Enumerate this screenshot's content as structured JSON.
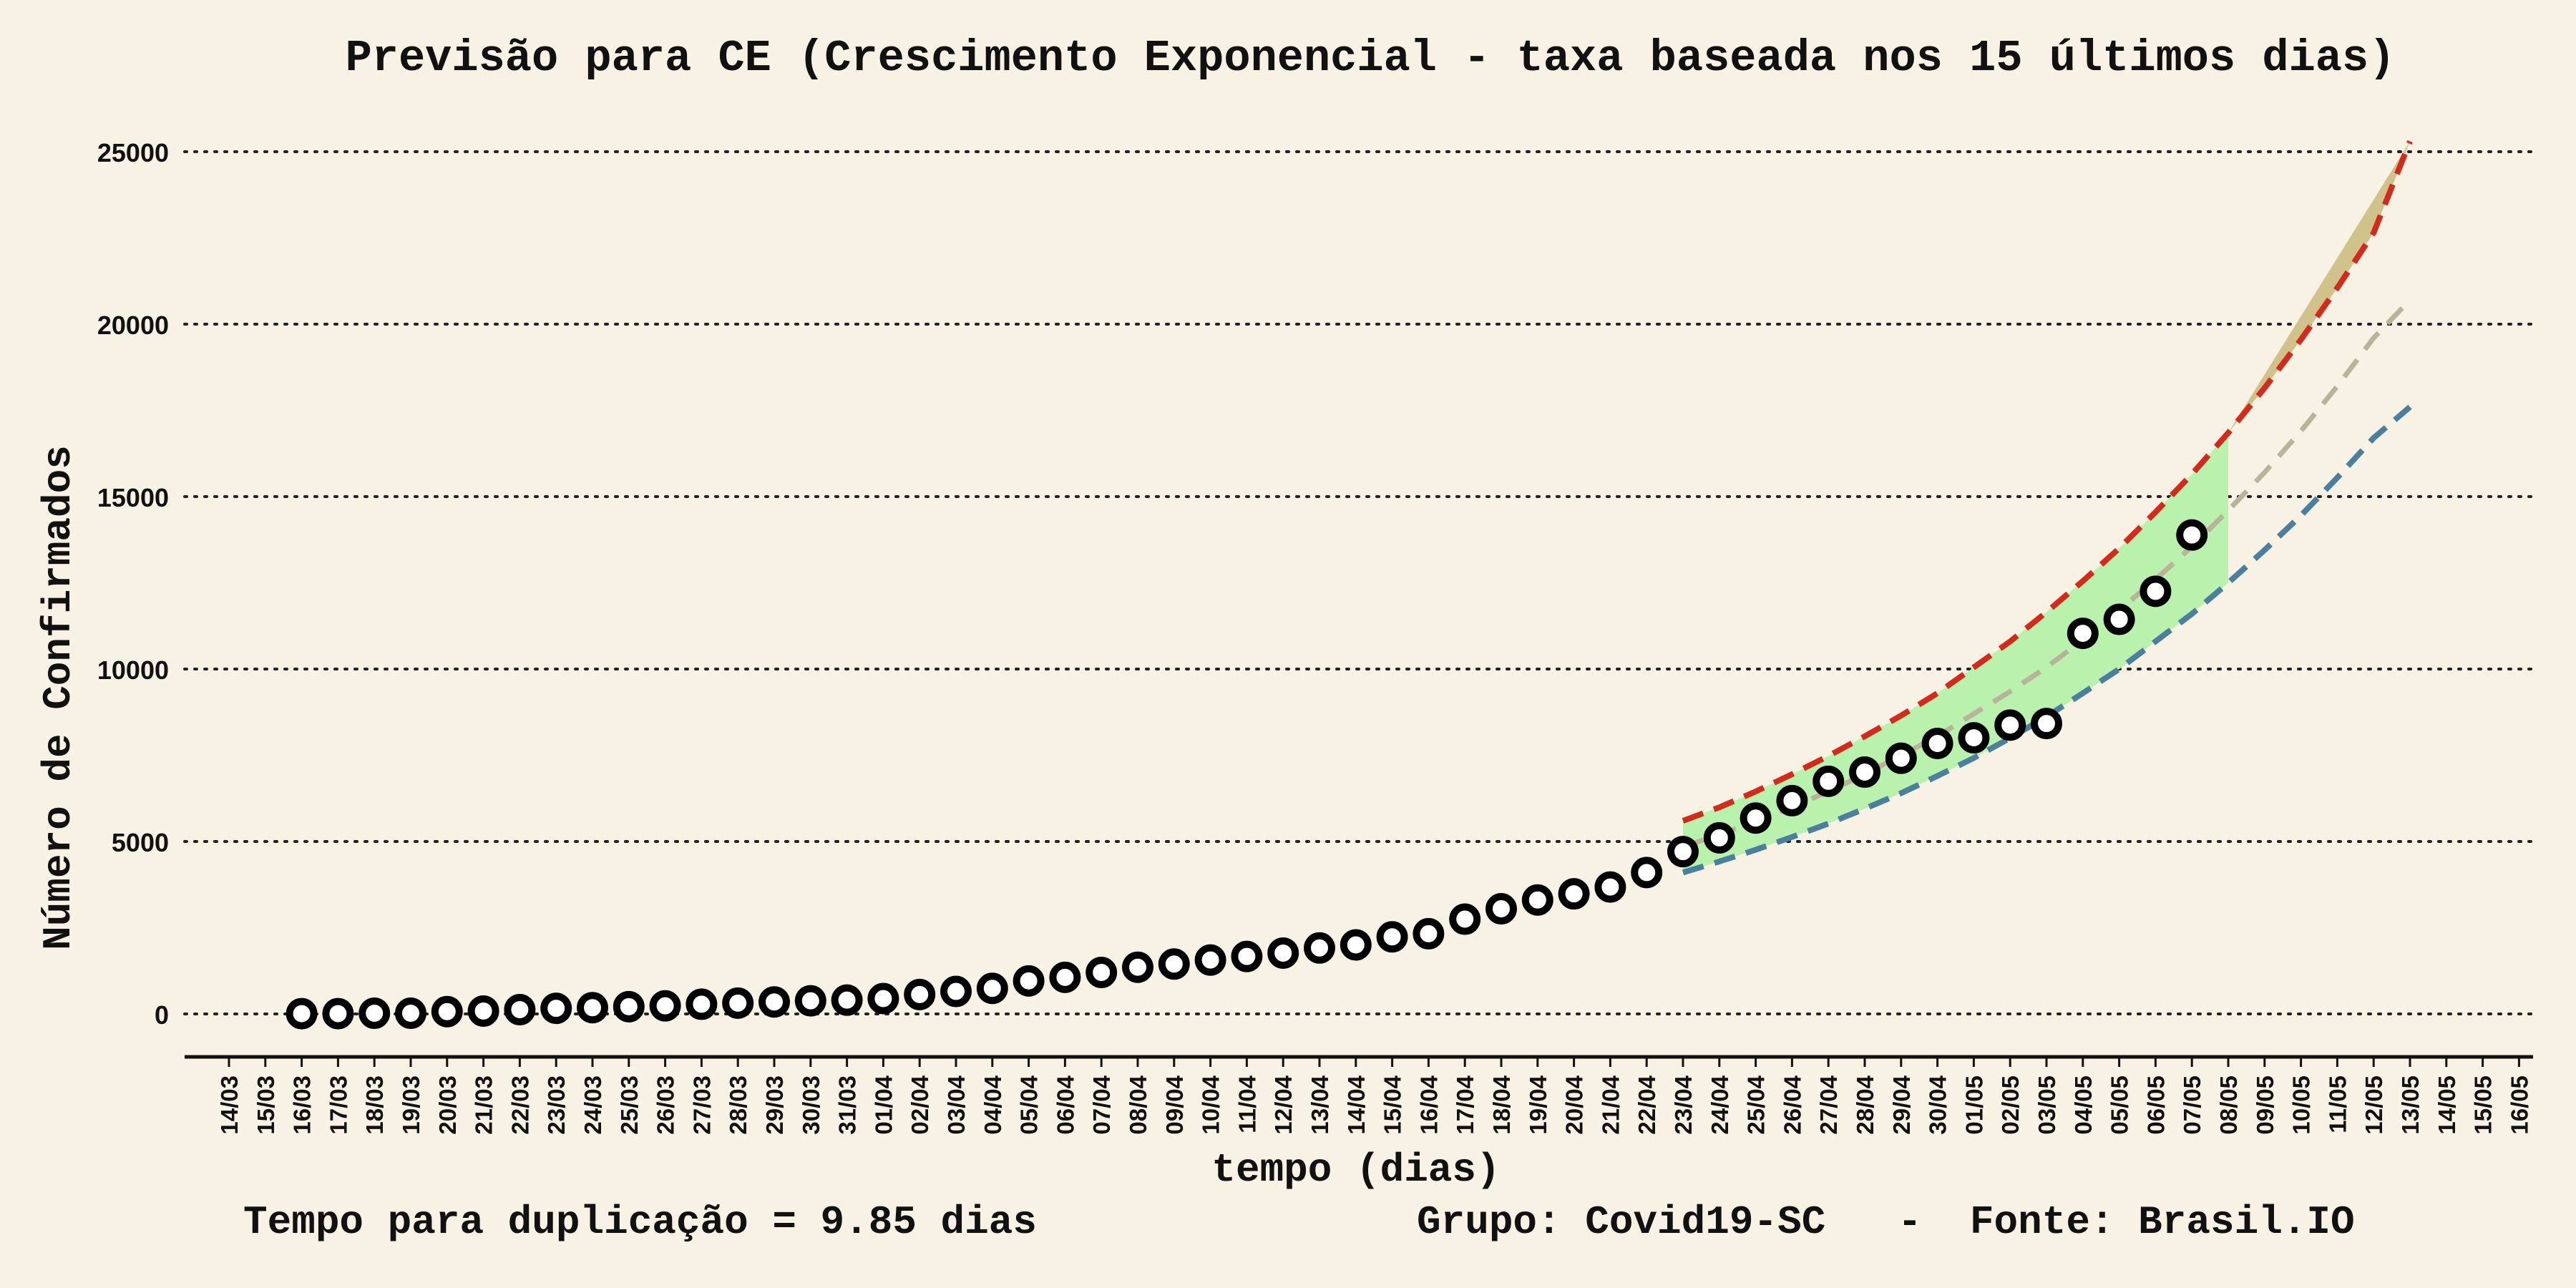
{
  "chart_data": {
    "type": "scatter",
    "title": "Previsão para CE (Crescimento Exponencial - taxa baseada nos 15 últimos dias)",
    "xlabel": "tempo (dias)",
    "ylabel": "Número de Confirmados",
    "ylim": [
      0,
      25000
    ],
    "yticks": [
      0,
      5000,
      10000,
      15000,
      20000,
      25000
    ],
    "grid": "horizontal dotted",
    "x_ticks": [
      "14/03",
      "15/03",
      "16/03",
      "17/03",
      "18/03",
      "19/03",
      "20/03",
      "21/03",
      "22/03",
      "23/03",
      "24/03",
      "25/03",
      "26/03",
      "27/03",
      "28/03",
      "29/03",
      "30/03",
      "31/03",
      "01/04",
      "02/04",
      "03/04",
      "04/04",
      "05/04",
      "06/04",
      "07/04",
      "08/04",
      "09/04",
      "10/04",
      "11/04",
      "12/04",
      "13/04",
      "14/04",
      "15/04",
      "16/04",
      "17/04",
      "18/04",
      "19/04",
      "20/04",
      "21/04",
      "22/04",
      "23/04",
      "24/04",
      "25/04",
      "26/04",
      "27/04",
      "28/04",
      "29/04",
      "30/04",
      "01/05",
      "02/05",
      "03/05",
      "04/05",
      "05/05",
      "06/05",
      "07/05",
      "08/05",
      "09/05",
      "10/05",
      "11/05",
      "12/05",
      "13/05",
      "14/05",
      "15/05",
      "16/05"
    ],
    "observed": {
      "dates": [
        "16/03",
        "17/03",
        "18/03",
        "19/03",
        "20/03",
        "21/03",
        "22/03",
        "23/03",
        "24/03",
        "25/03",
        "26/03",
        "27/03",
        "28/03",
        "29/03",
        "30/03",
        "31/03",
        "01/04",
        "02/04",
        "03/04",
        "04/04",
        "05/04",
        "06/04",
        "07/04",
        "08/04",
        "09/04",
        "10/04",
        "11/04",
        "12/04",
        "13/04",
        "14/04",
        "15/04",
        "16/04",
        "17/04",
        "18/04",
        "19/04",
        "20/04",
        "21/04",
        "22/04",
        "23/04",
        "24/04",
        "25/04",
        "26/04",
        "27/04",
        "28/04",
        "29/04",
        "30/04",
        "01/05",
        "02/05",
        "03/05",
        "04/05",
        "05/05",
        "06/05",
        "07/05"
      ],
      "values": [
        9,
        9,
        20,
        20,
        68,
        84,
        125,
        163,
        182,
        211,
        235,
        282,
        314,
        348,
        382,
        401,
        445,
        563,
        653,
        741,
        958,
        1061,
        1203,
        1355,
        1447,
        1563,
        1667,
        1764,
        1913,
        2003,
        2235,
        2325,
        2748,
        3049,
        3304,
        3482,
        3680,
        4100,
        4706,
        5107,
        5680,
        6184,
        6746,
        7012,
        7414,
        7843,
        8007,
        8375,
        8421,
        11036,
        11441,
        12254,
        13887
      ]
    },
    "projection": {
      "fit_dates": [
        "23/04",
        "24/04",
        "25/04",
        "26/04",
        "27/04",
        "28/04",
        "29/04",
        "30/04",
        "01/05",
        "02/05",
        "03/05",
        "04/05",
        "05/05",
        "06/05",
        "07/05",
        "08/05"
      ],
      "forecast_dates": [
        "08/05",
        "09/05",
        "10/05",
        "11/05",
        "12/05",
        "13/05",
        "14/05"
      ],
      "upper": [
        5600,
        5990,
        6450,
        6950,
        7480,
        8050,
        8650,
        9300,
        10050,
        10800,
        11650,
        12550,
        13500,
        14550,
        15650,
        16850,
        18150,
        19550,
        21050,
        22650,
        25300
      ],
      "central": [
        4850,
        5200,
        5590,
        6000,
        6450,
        6950,
        7500,
        8050,
        8700,
        9350,
        10050,
        10850,
        11700,
        12600,
        13550,
        14600,
        15700,
        16900,
        18200,
        19600,
        20700
      ],
      "lower": [
        4100,
        4420,
        4760,
        5130,
        5520,
        5950,
        6400,
        6900,
        7420,
        8000,
        8620,
        9300,
        10000,
        10800,
        11600,
        12500,
        13450,
        14450,
        15550,
        16700,
        17600
      ]
    },
    "colors": {
      "background": "#f8f2e4",
      "fit_band": "#b8f2ac",
      "forecast_band": "#cfc28a",
      "upper_line": "#d42a1c",
      "lower_line": "#4a7fa0",
      "central_line": "#b9b39a",
      "marker_edge": "#000000",
      "marker_face": "#ffffff"
    }
  },
  "footer": {
    "doubling": "Tempo para duplicação = 9.85 dias",
    "source": "Grupo: Covid19-SC   -  Fonte: Brasil.IO"
  }
}
